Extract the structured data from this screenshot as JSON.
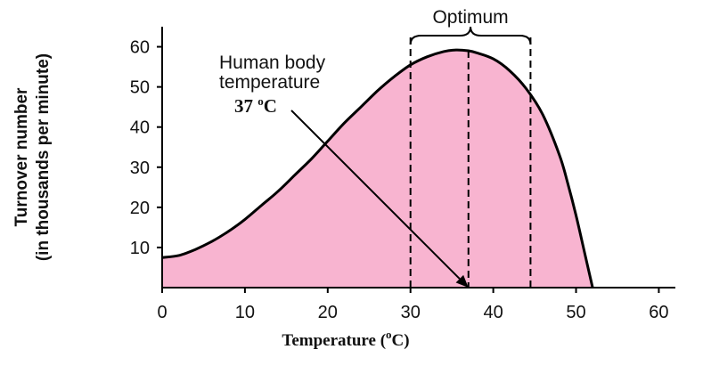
{
  "chart_data": {
    "type": "area",
    "title": "",
    "xlabel_main": "Temperature (",
    "xlabel_sup": "o",
    "xlabel_end": "C)",
    "ylabel_line1": "Turnover number",
    "ylabel_line2": "(in thousands per minute)",
    "xlim": [
      0,
      62
    ],
    "ylim": [
      0,
      65
    ],
    "x_ticks": [
      0,
      10,
      20,
      30,
      40,
      50,
      60
    ],
    "y_ticks": [
      10,
      20,
      30,
      40,
      50,
      60
    ],
    "grid": false,
    "series": [
      {
        "x": [
          0,
          2,
          4,
          6,
          8,
          10,
          12,
          14,
          16,
          18,
          20,
          22,
          24,
          26,
          28,
          30,
          32,
          34,
          35.5,
          37,
          38,
          40,
          42,
          44,
          46,
          48,
          49,
          50,
          51,
          52
        ],
        "y": [
          7.5,
          8,
          9.5,
          11.5,
          14,
          17,
          20.5,
          24,
          28,
          32,
          36.5,
          41,
          45,
          49,
          52.5,
          55.5,
          57.5,
          58.8,
          59.2,
          59,
          58.5,
          57,
          54,
          49.5,
          43,
          33,
          26,
          18,
          9,
          0
        ],
        "fill": "#f8b4d0",
        "stroke": "#000000"
      }
    ],
    "optimum": {
      "label": "Optimum",
      "x_start": 30,
      "x_end": 44.5
    },
    "body_temp": {
      "x": 37,
      "label_line1": "Human body",
      "label_line2": "temperature",
      "value_main": "37 ",
      "value_sup": "o",
      "value_end": "C"
    }
  }
}
